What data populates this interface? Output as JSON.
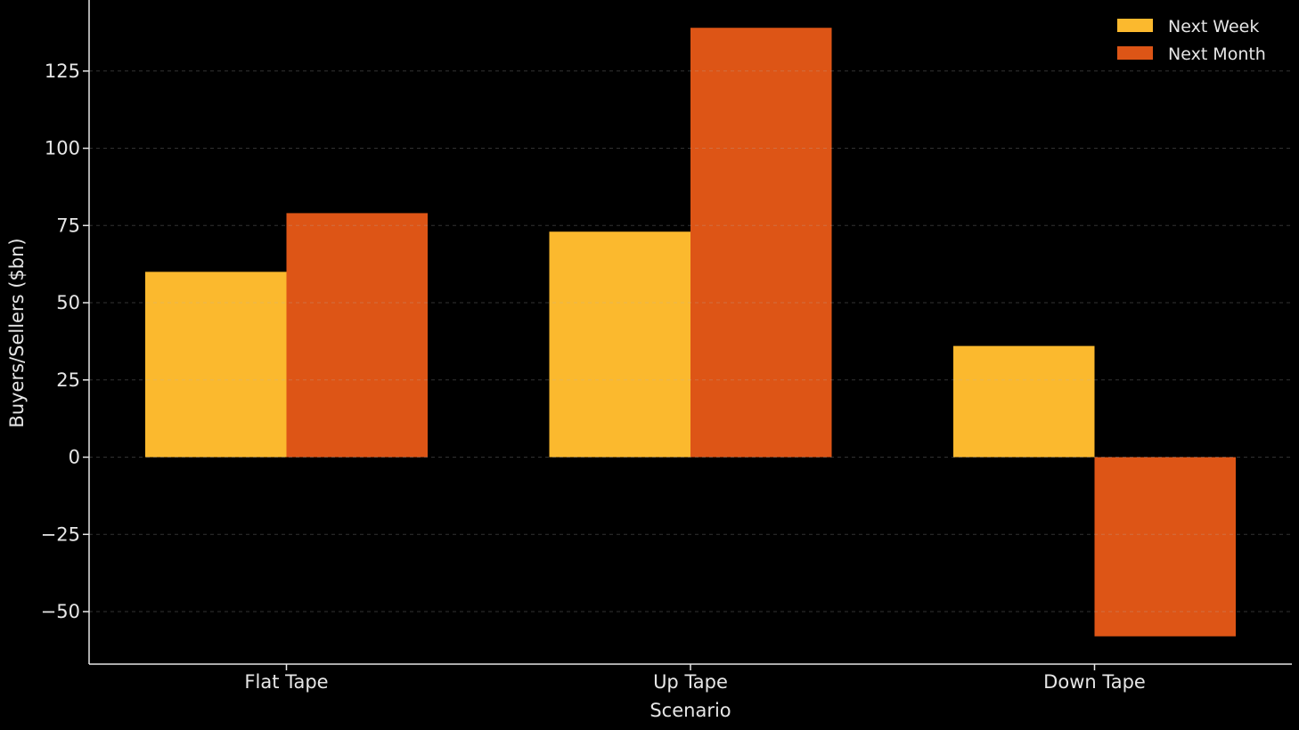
{
  "chart_data": {
    "type": "bar",
    "title": "",
    "xlabel": "Scenario",
    "ylabel": "Buyers/Sellers ($bn)",
    "categories": [
      "Flat Tape",
      "Up Tape",
      "Down Tape"
    ],
    "series": [
      {
        "name": "Next Week",
        "values": [
          60,
          73,
          36
        ],
        "color": "#fbb92e"
      },
      {
        "name": "Next Month",
        "values": [
          79,
          139,
          -58
        ],
        "color": "#dd5516"
      }
    ],
    "ylim": [
      -67,
      148
    ],
    "yticks": [
      -50,
      -25,
      0,
      25,
      50,
      75,
      100,
      125
    ],
    "ytick_labels": [
      "−50",
      "−25",
      "0",
      "25",
      "50",
      "75",
      "100",
      "125"
    ],
    "grid": true,
    "grid_style": "dashed",
    "legend_position": "top-right",
    "background": "#000000",
    "text_color": "#e6e6e6"
  }
}
